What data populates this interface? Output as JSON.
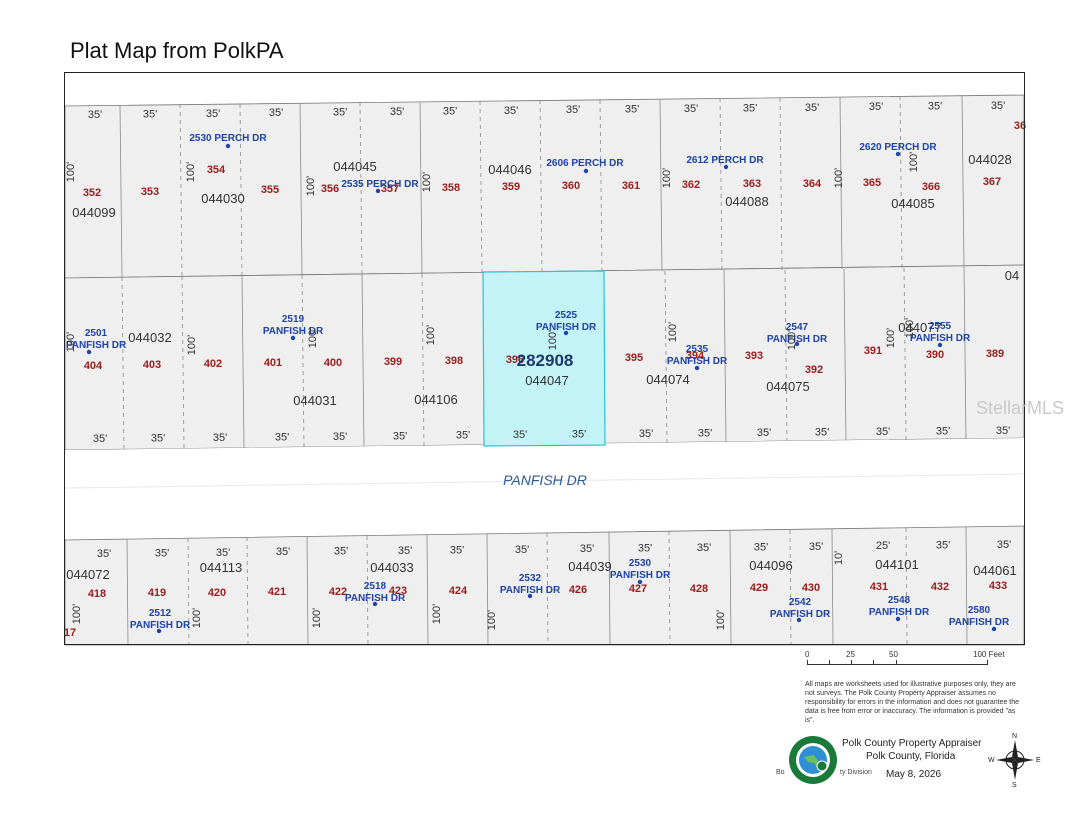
{
  "title": "Plat Map from PolkPA",
  "watermark": "StellarMLS",
  "street": "PANFISH DR",
  "highlight": {
    "parcel_id": "282908",
    "lot": "396",
    "parcel_number": "044047",
    "fill": "#c3f3f6",
    "stroke": "#27c3d3"
  },
  "top_dims": [
    "35'",
    "35'",
    "35'",
    "35'",
    "35'",
    "35'",
    "35'",
    "35'",
    "35'",
    "35'",
    "35'",
    "35'",
    "35'",
    "35'",
    "35'",
    "35'",
    "35'"
  ],
  "upper_lots": [
    "352",
    "353",
    "354",
    "355",
    "356",
    "357",
    "358",
    "359",
    "360",
    "361",
    "362",
    "363",
    "364",
    "365",
    "366",
    "367",
    "36"
  ],
  "upper_parcels": [
    "044099",
    "044030",
    "044045",
    "044046",
    "044088",
    "044085",
    "044028"
  ],
  "upper_addresses": [
    "2530 PERCH DR",
    "2535 PERCH DR",
    "2606 PERCH DR",
    "2612 PERCH DR",
    "2620 PERCH DR"
  ],
  "middle_lots": [
    "404",
    "403",
    "402",
    "401",
    "400",
    "399",
    "398",
    "395",
    "394",
    "393",
    "392",
    "391",
    "390",
    "389"
  ],
  "middle_parcels": [
    "044032",
    "044031",
    "044106",
    "044074",
    "044075",
    "044077",
    "04"
  ],
  "middle_addresses": [
    "2501 PANFISH DR",
    "2519 PANFISH DR",
    "2525 PANFISH DR",
    "2535 PANFISH DR",
    "2547 PANFISH DR",
    "2555 PANFISH DR"
  ],
  "middle_top_dims": [
    "35'",
    "35'",
    "35'",
    "35'",
    "35'",
    "35'",
    "35'",
    "35'",
    "35'",
    "35'",
    "35'",
    "35'",
    "35'",
    "35'",
    "35'",
    "35'"
  ],
  "lower_top_dims": [
    "35'",
    "35'",
    "35'",
    "35'",
    "35'",
    "35'",
    "35'",
    "35'",
    "35'",
    "35'",
    "35'",
    "35'",
    "35'",
    "25'",
    "35'",
    "35'",
    "35'"
  ],
  "lower_lots": [
    "17",
    "418",
    "419",
    "420",
    "421",
    "422",
    "423",
    "424",
    "426",
    "427",
    "428",
    "429",
    "430",
    "431",
    "432",
    "433"
  ],
  "lower_parcels": [
    "044072",
    "044113",
    "044033",
    "044039",
    "044096",
    "044101",
    "044061"
  ],
  "lower_addresses": [
    "2512 PANFISH DR",
    "2518 PANFISH DR",
    "2532 PANFISH DR",
    "2530 PANFISH DR",
    "2542 PANFISH DR",
    "2548 PANFISH DR",
    "2580 PANFISH DR"
  ],
  "depth_label": "100'",
  "depth_label_short": "10'",
  "scale": {
    "labels": [
      "0",
      "25",
      "50",
      "100 Feet"
    ]
  },
  "disclaimer": "All maps are worksheets used for illustrative purposes only, they are not surveys. The Polk County Property Appraiser assumes no responsibility for errors in the information and does not guarantee the data is free from error or inaccuracy. The information is provided \"as is\".",
  "appraiser": {
    "name": "Polk County Property Appraiser",
    "county": "Polk County, Florida",
    "date": "May 8, 2026",
    "footer_left": "Bo",
    "footer_division": "ty Division",
    "logo_text": "PROPERTY APPRAISER"
  },
  "compass": {
    "n": "N",
    "s": "S",
    "e": "E",
    "w": "W"
  },
  "colors": {
    "lot_number": "#9b1c1c",
    "address": "#1f43a8",
    "parcel": "#333333",
    "parcel_fill": "#efefef",
    "street_text": "#2a5a9a"
  }
}
